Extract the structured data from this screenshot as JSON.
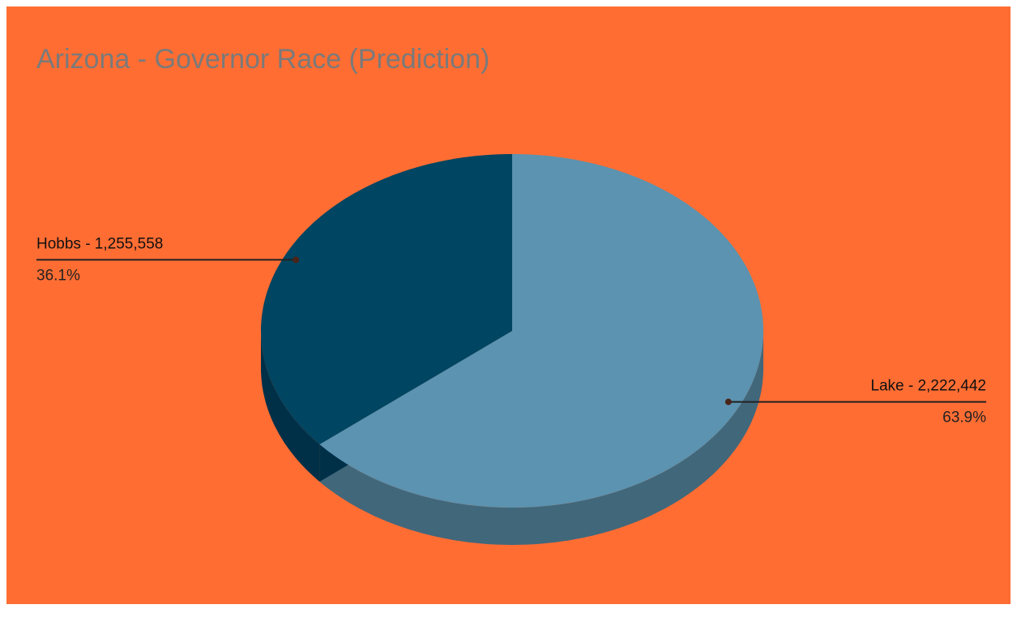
{
  "chart_data": {
    "type": "pie3d",
    "title": "Arizona - Governor Race (Prediction)",
    "values": [
      2222442,
      1255558
    ],
    "value_labels": [
      "Lake - 2,222,442",
      "Hobbs - 1,255,558"
    ],
    "percent_labels": [
      "63.9%",
      "36.1%"
    ],
    "colors": [
      "#5b93b0",
      "#004561"
    ],
    "side_colors": [
      "#41677b",
      "#003048"
    ],
    "background": "#ff6d33"
  }
}
